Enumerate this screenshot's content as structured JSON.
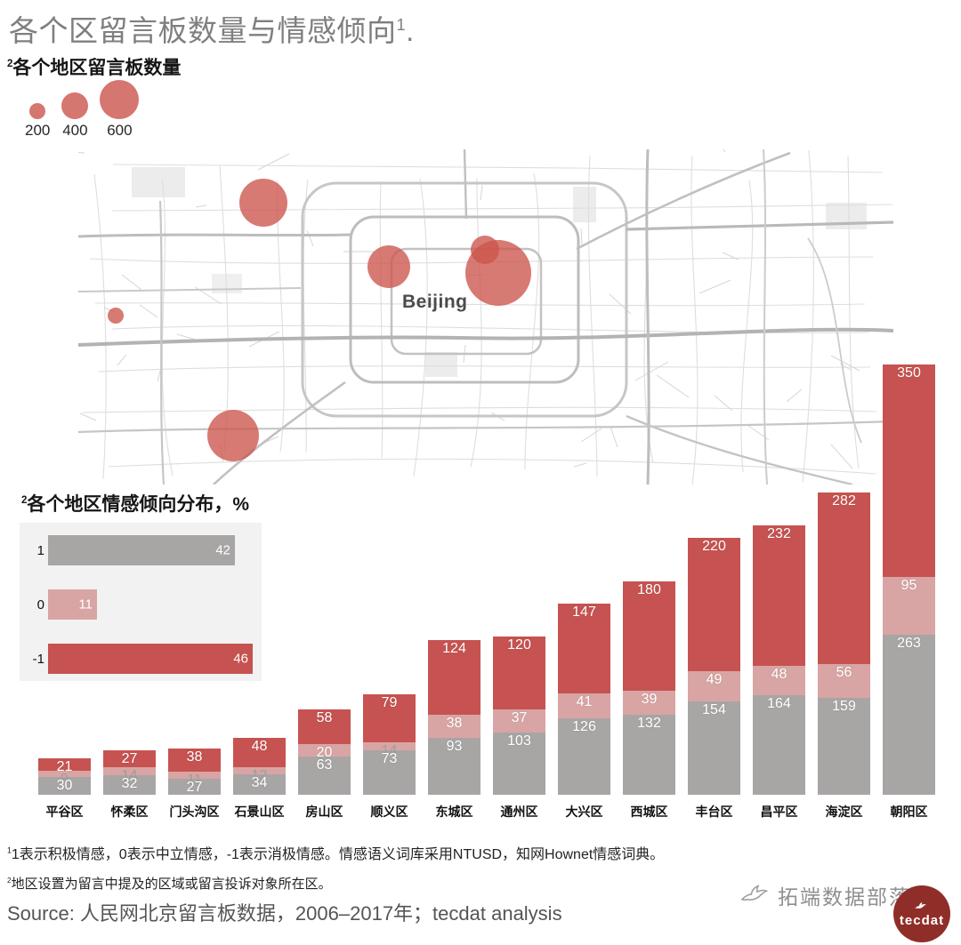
{
  "title": {
    "text": "各个区留言板数量与情感倾向",
    "sup": "1",
    "tail": "."
  },
  "map_section": {
    "heading": {
      "sup": "2",
      "text": "各个地区留言板数量"
    }
  },
  "sentiment_section": {
    "heading": {
      "sup": "2",
      "text": "各个地区情感倾向分布，%"
    }
  },
  "chart_data": [
    {
      "id": "message_bubble_map",
      "type": "bubble-map",
      "title": "各个地区留言板数量",
      "map_label": "Beijing",
      "bubble_color": "#cc544c",
      "size_legend": [
        {
          "label": "200",
          "r": 9
        },
        {
          "label": "400",
          "r": 15
        },
        {
          "label": "600",
          "r": 22
        }
      ],
      "points": [
        {
          "x": 208,
          "y": 60,
          "r": 27
        },
        {
          "x": 349,
          "y": 132,
          "r": 24
        },
        {
          "x": 457,
          "y": 113,
          "r": 16
        },
        {
          "x": 472,
          "y": 139,
          "r": 37
        },
        {
          "x": 42,
          "y": 187,
          "r": 9
        },
        {
          "x": 174,
          "y": 322,
          "r": 29
        }
      ]
    },
    {
      "id": "sentiment_distribution",
      "type": "bar",
      "orientation": "horizontal",
      "title": "各个地区情感倾向分布，%",
      "unit": "%",
      "rows": [
        {
          "label": "1",
          "value": 42,
          "color": "#a8a5a5"
        },
        {
          "label": "0",
          "value": 11,
          "color": "#d8a5a4"
        },
        {
          "label": "-1",
          "value": 46,
          "color": "#c65351"
        }
      ]
    },
    {
      "id": "district_stacked_bar",
      "type": "bar",
      "stacked": true,
      "value_labels": true,
      "categories": [
        "平谷区",
        "怀柔区",
        "门头沟区",
        "石景山区",
        "房山区",
        "顺义区",
        "东城区",
        "通州区",
        "大兴区",
        "西城区",
        "丰台区",
        "昌平区",
        "海淀区",
        "朝阳区"
      ],
      "series": [
        {
          "name": "1",
          "color": "#a8a5a5",
          "values": [
            30,
            32,
            27,
            34,
            63,
            73,
            93,
            103,
            126,
            132,
            154,
            164,
            159,
            263
          ]
        },
        {
          "name": "0",
          "color": "#d8a5a4",
          "values": [
            9,
            14,
            11,
            12,
            20,
            14,
            38,
            37,
            41,
            39,
            49,
            48,
            56,
            95
          ]
        },
        {
          "name": "-1",
          "color": "#c65351",
          "values": [
            21,
            27,
            38,
            48,
            58,
            79,
            124,
            120,
            147,
            180,
            220,
            232,
            282,
            350
          ]
        }
      ]
    }
  ],
  "footnotes": [
    {
      "sup": "1",
      "text": "1表示积极情感，0表示中立情感，-1表示消极情感。情感语义词库采用NTUSD，知网Hownet情感词典。"
    },
    {
      "sup": "2",
      "text": "地区设置为留言中提及的区域或留言投诉对象所在区。"
    }
  ],
  "source": "Source: 人民网北京留言板数据，2006–2017年；tecdat analysis",
  "watermark": {
    "brand": "拓端数据部落",
    "logo": "tecdat"
  },
  "colors": {
    "negative": "#c65351",
    "neutral": "#d8a5a4",
    "positive": "#a8a5a5",
    "bubble": "#cc544c",
    "title_gray": "#7f7f7f"
  }
}
